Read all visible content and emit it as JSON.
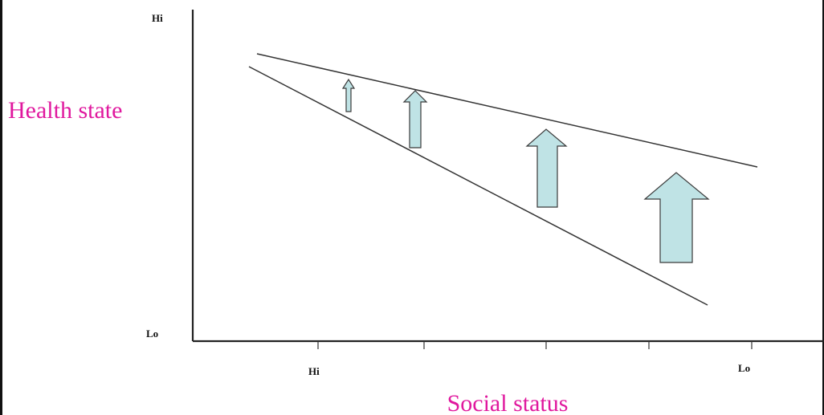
{
  "diagram": {
    "y_axis": {
      "title": "Health state",
      "top_label": "Hi",
      "bottom_label": "Lo"
    },
    "x_axis": {
      "title": "Social status",
      "left_label": "Hi",
      "right_label": "Lo"
    },
    "colors": {
      "axis_title": "#e0189e",
      "arrow_fill": "#bfe3e5",
      "arrow_stroke": "#3a3a3a",
      "line": "#333333"
    }
  }
}
